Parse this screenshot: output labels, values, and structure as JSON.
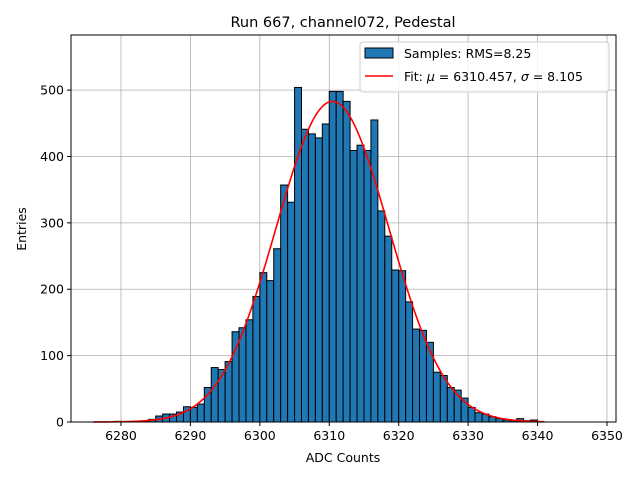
{
  "chart_data": {
    "type": "bar",
    "title": "Run 667, channel072, Pedestal",
    "xlabel": "ADC Counts",
    "ylabel": "Entries",
    "xlim": [
      6272.8,
      6351.3
    ],
    "ylim": [
      0,
      583
    ],
    "xticks": [
      6280,
      6290,
      6300,
      6310,
      6320,
      6330,
      6340,
      6350
    ],
    "yticks": [
      0,
      100,
      200,
      300,
      400,
      500
    ],
    "grid": true,
    "legend_position": "top-right",
    "bin_width": 1,
    "histogram": {
      "name": "Samples: RMS=8.25",
      "color": "#1f77b4",
      "bin_starts": [
        6279,
        6283,
        6284,
        6285,
        6286,
        6287,
        6288,
        6289,
        6290,
        6291,
        6292,
        6293,
        6294,
        6295,
        6296,
        6297,
        6298,
        6299,
        6300,
        6301,
        6302,
        6303,
        6304,
        6305,
        6306,
        6307,
        6308,
        6309,
        6310,
        6311,
        6312,
        6313,
        6314,
        6315,
        6316,
        6317,
        6318,
        6319,
        6320,
        6321,
        6322,
        6323,
        6324,
        6325,
        6326,
        6327,
        6328,
        6329,
        6330,
        6331,
        6332,
        6333,
        6334,
        6335,
        6336,
        6337,
        6338,
        6339
      ],
      "counts": [
        1,
        1,
        4,
        9,
        12,
        12,
        15,
        23,
        22,
        27,
        52,
        82,
        79,
        91,
        136,
        142,
        154,
        189,
        225,
        213,
        261,
        357,
        331,
        504,
        441,
        434,
        428,
        449,
        498,
        498,
        483,
        409,
        417,
        409,
        455,
        318,
        280,
        229,
        228,
        181,
        140,
        138,
        120,
        75,
        70,
        52,
        48,
        36,
        22,
        14,
        12,
        8,
        5,
        3,
        2,
        5,
        2,
        3
      ]
    },
    "fit": {
      "name": "Fit: μ = 6310.457, σ = 8.105",
      "label_prefix": "Fit: ",
      "label_mu": "μ",
      "label_mid": " = 6310.457, ",
      "label_sigma": "σ",
      "label_end": " = 8.105",
      "color": "#ff0000",
      "mu": 6310.457,
      "sigma": 8.105,
      "amplitude": 483,
      "x_range": [
        6276,
        6341
      ]
    }
  }
}
